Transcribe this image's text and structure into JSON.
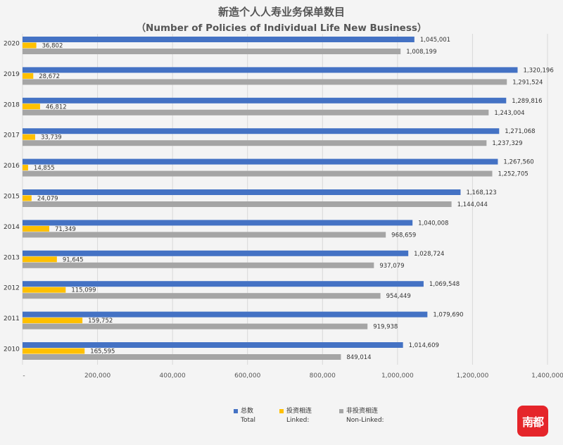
{
  "title_cn": "新造个人人寿业务保单数目",
  "title_en": "（Number of Policies of Individual Life New Business）",
  "logo_text": "南都",
  "chart_data": {
    "type": "bar",
    "orientation": "horizontal",
    "categories": [
      "2020",
      "2019",
      "2018",
      "2017",
      "2016",
      "2015",
      "2014",
      "2013",
      "2012",
      "2011",
      "2010"
    ],
    "series": [
      {
        "name": "总数 Total",
        "legend_cn": "总数",
        "legend_en": "Total",
        "color": "#4472c4",
        "values": [
          1045001,
          1320196,
          1289816,
          1271068,
          1267560,
          1168123,
          1040008,
          1028724,
          1069548,
          1079690,
          1014609
        ],
        "labels": [
          "1,045,001",
          "1,320,196",
          "1,289,816",
          "1,271,068",
          "1,267,560",
          "1,168,123",
          "1,040,008",
          "1,028,724",
          "1,069,548",
          "1,079,690",
          "1,014,609"
        ]
      },
      {
        "name": "投资相连 Linked:",
        "legend_cn": "投资相连",
        "legend_en": "Linked:",
        "color": "#ffc000",
        "values": [
          36802,
          28672,
          46812,
          33739,
          14855,
          24079,
          71349,
          91645,
          115099,
          159752,
          165595
        ],
        "labels": [
          "36,802",
          "28,672",
          "46,812",
          "33,739",
          "14,855",
          "24,079",
          "71,349",
          "91,645",
          "115,099",
          "159,752",
          "165,595"
        ]
      },
      {
        "name": "非投资相连 Non-Linked:",
        "legend_cn": "非投资相连",
        "legend_en": "Non-Linked:",
        "color": "#a5a5a5",
        "values": [
          1008199,
          1291524,
          1243004,
          1237329,
          1252705,
          1144044,
          968659,
          937079,
          954449,
          919938,
          849014
        ],
        "labels": [
          "1,008,199",
          "1,291,524",
          "1,243,004",
          "1,237,329",
          "1,252,705",
          "1,144,044",
          "968,659",
          "937,079",
          "954,449",
          "919,938",
          "849,014"
        ]
      }
    ],
    "xlim": [
      0,
      1400000
    ],
    "xticks": [
      0,
      200000,
      400000,
      600000,
      800000,
      1000000,
      1200000,
      1400000
    ],
    "xtick_labels": [
      "-",
      "200,000",
      "400,000",
      "600,000",
      "800,000",
      "1,000,000",
      "1,200,000",
      "1,400,000"
    ],
    "grid": true,
    "legend_position": "bottom"
  }
}
